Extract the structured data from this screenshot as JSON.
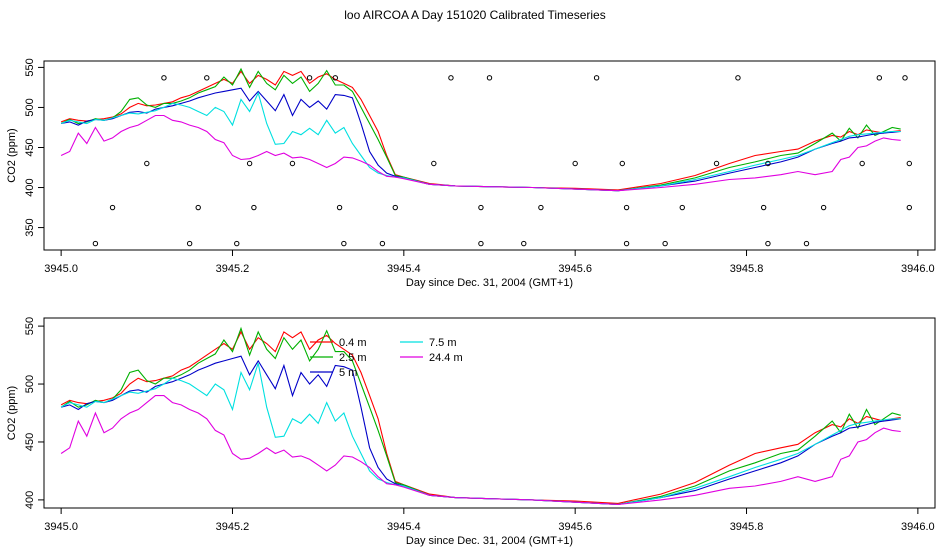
{
  "title": "loo AIRCOA A  Day 151020  Calibrated Timeseries",
  "chart_data": [
    {
      "type": "line",
      "xlabel": "Day since Dec. 31, 2004 (GMT+1)",
      "ylabel": "CO2 (ppm)",
      "xlim": [
        3944.98,
        3946.02
      ],
      "ylim": [
        322,
        558
      ],
      "xticks": [
        3945.0,
        3945.2,
        3945.4,
        3945.6,
        3945.8,
        3946.0
      ],
      "xtick_labels": [
        "3945.0",
        "3945.2",
        "3945.4",
        "3945.6",
        "3945.8",
        "3946.0"
      ],
      "yticks": [
        350,
        400,
        450,
        500,
        550
      ],
      "ytick_labels": [
        "350",
        "400",
        "450",
        "500",
        "550"
      ],
      "series": [
        {
          "color": "#ff0000",
          "x": [
            3945.0,
            3945.01,
            3945.02,
            3945.03,
            3945.04,
            3945.05,
            3945.06,
            3945.07,
            3945.08,
            3945.09,
            3945.1,
            3945.11,
            3945.12,
            3945.13,
            3945.14,
            3945.15,
            3945.16,
            3945.17,
            3945.18,
            3945.19,
            3945.2,
            3945.21,
            3945.22,
            3945.23,
            3945.24,
            3945.25,
            3945.26,
            3945.27,
            3945.28,
            3945.29,
            3945.3,
            3945.31,
            3945.32,
            3945.33,
            3945.34,
            3945.35,
            3945.36,
            3945.37,
            3945.38,
            3945.39,
            3945.4,
            3945.43,
            3945.46,
            3945.5,
            3945.55,
            3945.6,
            3945.65,
            3945.7,
            3945.74,
            3945.78,
            3945.81,
            3945.84,
            3945.86,
            3945.88,
            3945.9,
            3945.91,
            3945.92,
            3945.93,
            3945.94,
            3945.95,
            3945.96,
            3945.97,
            3945.98
          ],
          "y": [
            482,
            486,
            484,
            483,
            485,
            486,
            488,
            492,
            500,
            505,
            502,
            503,
            505,
            507,
            512,
            515,
            520,
            525,
            530,
            535,
            530,
            545,
            530,
            540,
            535,
            528,
            545,
            540,
            545,
            530,
            538,
            542,
            535,
            530,
            525,
            510,
            490,
            470,
            440,
            416,
            413,
            405,
            402,
            401,
            400,
            399,
            397,
            405,
            415,
            430,
            440,
            445,
            448,
            458,
            465,
            463,
            470,
            466,
            472,
            470,
            468,
            470,
            471
          ]
        },
        {
          "color": "#00b000",
          "x": [
            3945.0,
            3945.01,
            3945.02,
            3945.03,
            3945.04,
            3945.05,
            3945.06,
            3945.07,
            3945.08,
            3945.09,
            3945.1,
            3945.11,
            3945.12,
            3945.13,
            3945.14,
            3945.15,
            3945.16,
            3945.17,
            3945.18,
            3945.19,
            3945.2,
            3945.21,
            3945.22,
            3945.23,
            3945.24,
            3945.25,
            3945.26,
            3945.27,
            3945.28,
            3945.29,
            3945.3,
            3945.31,
            3945.32,
            3945.33,
            3945.34,
            3945.35,
            3945.36,
            3945.37,
            3945.38,
            3945.39,
            3945.4,
            3945.43,
            3945.46,
            3945.5,
            3945.55,
            3945.6,
            3945.65,
            3945.7,
            3945.74,
            3945.78,
            3945.81,
            3945.84,
            3945.86,
            3945.88,
            3945.9,
            3945.91,
            3945.92,
            3945.93,
            3945.94,
            3945.95,
            3945.96,
            3945.97,
            3945.98
          ],
          "y": [
            480,
            485,
            480,
            482,
            486,
            484,
            487,
            495,
            510,
            512,
            503,
            500,
            505,
            505,
            508,
            512,
            518,
            522,
            526,
            538,
            528,
            548,
            525,
            545,
            530,
            522,
            540,
            530,
            538,
            520,
            530,
            546,
            528,
            528,
            520,
            500,
            480,
            460,
            438,
            415,
            413,
            404,
            402,
            401,
            400,
            398,
            396,
            403,
            412,
            425,
            432,
            440,
            443,
            455,
            468,
            458,
            474,
            462,
            478,
            465,
            470,
            475,
            473
          ]
        },
        {
          "color": "#0000c8",
          "x": [
            3945.0,
            3945.01,
            3945.02,
            3945.03,
            3945.04,
            3945.05,
            3945.06,
            3945.07,
            3945.08,
            3945.09,
            3945.1,
            3945.11,
            3945.12,
            3945.13,
            3945.14,
            3945.15,
            3945.16,
            3945.17,
            3945.18,
            3945.19,
            3945.2,
            3945.21,
            3945.22,
            3945.23,
            3945.24,
            3945.25,
            3945.26,
            3945.27,
            3945.28,
            3945.29,
            3945.3,
            3945.31,
            3945.32,
            3945.33,
            3945.34,
            3945.35,
            3945.36,
            3945.37,
            3945.38,
            3945.39,
            3945.4,
            3945.43,
            3945.46,
            3945.5,
            3945.55,
            3945.6,
            3945.65,
            3945.7,
            3945.74,
            3945.78,
            3945.81,
            3945.84,
            3945.86,
            3945.88,
            3945.9,
            3945.91,
            3945.92,
            3945.93,
            3945.94,
            3945.95,
            3945.96,
            3945.97,
            3945.98
          ],
          "y": [
            480,
            482,
            478,
            483,
            485,
            484,
            486,
            490,
            494,
            495,
            493,
            498,
            500,
            502,
            505,
            508,
            512,
            515,
            518,
            520,
            522,
            524,
            508,
            520,
            508,
            496,
            516,
            490,
            510,
            500,
            508,
            498,
            516,
            515,
            512,
            480,
            445,
            428,
            418,
            414,
            412,
            404,
            402,
            401,
            400,
            398,
            396,
            402,
            408,
            418,
            425,
            432,
            438,
            448,
            455,
            458,
            462,
            463,
            465,
            467,
            468,
            469,
            470
          ]
        },
        {
          "color": "#00e0e0",
          "x": [
            3945.0,
            3945.01,
            3945.02,
            3945.03,
            3945.04,
            3945.05,
            3945.06,
            3945.07,
            3945.08,
            3945.09,
            3945.1,
            3945.11,
            3945.12,
            3945.13,
            3945.14,
            3945.15,
            3945.16,
            3945.17,
            3945.18,
            3945.19,
            3945.2,
            3945.21,
            3945.22,
            3945.23,
            3945.24,
            3945.25,
            3945.26,
            3945.27,
            3945.28,
            3945.29,
            3945.3,
            3945.31,
            3945.32,
            3945.33,
            3945.34,
            3945.35,
            3945.36,
            3945.37,
            3945.38,
            3945.39,
            3945.4,
            3945.43,
            3945.46,
            3945.5,
            3945.55,
            3945.6,
            3945.65,
            3945.7,
            3945.74,
            3945.78,
            3945.81,
            3945.84,
            3945.86,
            3945.88,
            3945.9,
            3945.91,
            3945.92,
            3945.93,
            3945.94,
            3945.95,
            3945.96,
            3945.97,
            3945.98
          ],
          "y": [
            480,
            484,
            482,
            480,
            485,
            484,
            487,
            490,
            493,
            492,
            494,
            496,
            500,
            505,
            503,
            500,
            495,
            490,
            500,
            495,
            478,
            510,
            495,
            518,
            480,
            454,
            455,
            470,
            466,
            474,
            466,
            484,
            468,
            475,
            455,
            440,
            425,
            418,
            415,
            413,
            412,
            404,
            402,
            401,
            400,
            398,
            396,
            402,
            410,
            420,
            428,
            435,
            440,
            448,
            456,
            460,
            464,
            466,
            467,
            468,
            469,
            470,
            470
          ]
        },
        {
          "color": "#e000e0",
          "x": [
            3945.0,
            3945.01,
            3945.02,
            3945.03,
            3945.04,
            3945.05,
            3945.06,
            3945.07,
            3945.08,
            3945.09,
            3945.1,
            3945.11,
            3945.12,
            3945.13,
            3945.14,
            3945.15,
            3945.16,
            3945.17,
            3945.18,
            3945.19,
            3945.2,
            3945.21,
            3945.22,
            3945.23,
            3945.24,
            3945.25,
            3945.26,
            3945.27,
            3945.28,
            3945.29,
            3945.3,
            3945.31,
            3945.32,
            3945.33,
            3945.34,
            3945.35,
            3945.36,
            3945.37,
            3945.38,
            3945.39,
            3945.4,
            3945.43,
            3945.46,
            3945.5,
            3945.55,
            3945.6,
            3945.65,
            3945.7,
            3945.74,
            3945.78,
            3945.81,
            3945.84,
            3945.86,
            3945.88,
            3945.9,
            3945.91,
            3945.92,
            3945.93,
            3945.94,
            3945.95,
            3945.96,
            3945.97,
            3945.98
          ],
          "y": [
            440,
            445,
            468,
            455,
            475,
            458,
            462,
            470,
            475,
            478,
            484,
            490,
            490,
            484,
            482,
            478,
            475,
            470,
            460,
            456,
            440,
            435,
            436,
            440,
            445,
            440,
            443,
            437,
            438,
            435,
            430,
            425,
            430,
            438,
            437,
            433,
            428,
            420,
            414,
            413,
            411,
            404,
            402,
            401,
            400,
            398,
            396,
            400,
            404,
            410,
            412,
            416,
            420,
            416,
            420,
            435,
            438,
            450,
            452,
            458,
            462,
            460,
            459
          ]
        }
      ],
      "points": {
        "x": [
          3945.04,
          3945.06,
          3945.1,
          3945.12,
          3945.15,
          3945.16,
          3945.17,
          3945.205,
          3945.22,
          3945.225,
          3945.27,
          3945.29,
          3945.32,
          3945.325,
          3945.33,
          3945.375,
          3945.39,
          3945.435,
          3945.455,
          3945.49,
          3945.49,
          3945.5,
          3945.54,
          3945.56,
          3945.6,
          3945.625,
          3945.655,
          3945.66,
          3945.66,
          3945.705,
          3945.725,
          3945.765,
          3945.79,
          3945.82,
          3945.825,
          3945.825,
          3945.87,
          3945.89,
          3945.935,
          3945.955,
          3945.985,
          3945.99,
          3945.99
        ],
        "y": [
          330,
          375,
          430,
          537,
          330,
          375,
          537,
          330,
          430,
          375,
          430,
          537,
          537,
          375,
          330,
          330,
          375,
          430,
          537,
          375,
          330,
          537,
          330,
          375,
          430,
          537,
          430,
          375,
          330,
          330,
          375,
          430,
          537,
          375,
          330,
          430,
          330,
          375,
          430,
          537,
          537,
          430,
          375
        ]
      }
    },
    {
      "type": "line",
      "xlabel": "Day since Dec. 31, 2004 (GMT+1)",
      "ylabel": "CO2 (ppm)",
      "xlim": [
        3944.98,
        3946.02
      ],
      "ylim": [
        393,
        557
      ],
      "xticks": [
        3945.0,
        3945.2,
        3945.4,
        3945.6,
        3945.8,
        3946.0
      ],
      "xtick_labels": [
        "3945.0",
        "3945.2",
        "3945.4",
        "3945.6",
        "3945.8",
        "3946.0"
      ],
      "yticks": [
        400,
        450,
        500,
        550
      ],
      "ytick_labels": [
        "400",
        "450",
        "500",
        "550"
      ],
      "legend": {
        "placement": "top-center",
        "entries": [
          {
            "name": "0.4 m",
            "color": "#ff0000"
          },
          {
            "name": "2.5 m",
            "color": "#00b000"
          },
          {
            "name": "5 m",
            "color": "#0000c8"
          },
          {
            "name": "7.5 m",
            "color": "#00e0e0"
          },
          {
            "name": "24.4 m",
            "color": "#e000e0"
          }
        ]
      }
    }
  ]
}
